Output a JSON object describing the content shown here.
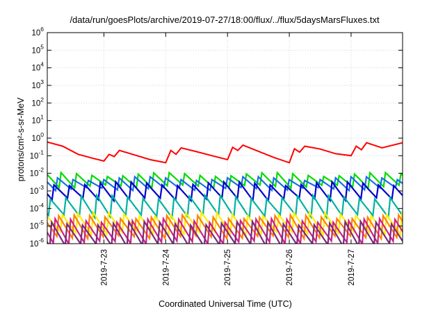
{
  "chart_data": {
    "type": "line",
    "title": "/data/run/goesPlots/archive/2019-07-27/18:00/flux/../flux/5daysMarsFluxes.txt",
    "xlabel": "Coordinated Universal Time (UTC)",
    "ylabel": "protons/cm²-s-sr-MeV",
    "y_scale": "log",
    "ylim": [
      1e-06,
      1000000.0
    ],
    "y_ticks": [
      {
        "base": "10",
        "exp": "-6"
      },
      {
        "base": "10",
        "exp": "-5"
      },
      {
        "base": "10",
        "exp": "-4"
      },
      {
        "base": "10",
        "exp": "-3"
      },
      {
        "base": "10",
        "exp": "-2"
      },
      {
        "base": "10",
        "exp": "-1"
      },
      {
        "base": "10",
        "exp": "0"
      },
      {
        "base": "10",
        "exp": "1"
      },
      {
        "base": "10",
        "exp": "2"
      },
      {
        "base": "10",
        "exp": "3"
      },
      {
        "base": "10",
        "exp": "4"
      },
      {
        "base": "10",
        "exp": "5"
      },
      {
        "base": "10",
        "exp": "6"
      }
    ],
    "xlim": [
      "2019-07-22 02:00",
      "2019-07-27 20:00"
    ],
    "x_ticks": [
      "2019-7-23",
      "2019-7-24",
      "2019-7-25",
      "2019-7-26",
      "2019-7-27"
    ],
    "grid": true,
    "legend": "none",
    "series": [
      {
        "color": "#ff0000",
        "x": [
          "2019-07-22 02:00",
          "2019-07-22 08:00",
          "2019-07-22 14:00",
          "2019-07-22 20:00",
          "2019-07-23 00:00",
          "2019-07-23 02:00",
          "2019-07-23 04:00",
          "2019-07-23 06:00",
          "2019-07-23 12:00",
          "2019-07-23 18:00",
          "2019-07-24 00:00",
          "2019-07-24 02:00",
          "2019-07-24 04:00",
          "2019-07-24 06:00",
          "2019-07-24 12:00",
          "2019-07-24 18:00",
          "2019-07-25 00:00",
          "2019-07-25 02:00",
          "2019-07-25 04:00",
          "2019-07-25 06:00",
          "2019-07-25 12:00",
          "2019-07-25 18:00",
          "2019-07-26 00:00",
          "2019-07-26 02:00",
          "2019-07-26 04:00",
          "2019-07-26 06:00",
          "2019-07-26 12:00",
          "2019-07-26 18:00",
          "2019-07-27 00:00",
          "2019-07-27 02:00",
          "2019-07-27 04:00",
          "2019-07-27 06:00",
          "2019-07-27 12:00",
          "2019-07-27 20:00"
        ],
        "y": [
          0.6,
          0.35,
          0.12,
          0.07,
          0.05,
          0.12,
          0.09,
          0.2,
          0.11,
          0.06,
          0.04,
          0.2,
          0.12,
          0.28,
          0.17,
          0.1,
          0.06,
          0.3,
          0.2,
          0.4,
          0.18,
          0.08,
          0.04,
          0.25,
          0.16,
          0.35,
          0.24,
          0.13,
          0.1,
          0.35,
          0.22,
          0.55,
          0.28,
          0.55
        ]
      },
      {
        "color": "#00dd00",
        "base": 0.004,
        "amp": 2.2
      },
      {
        "color": "#1a6ee6",
        "base": 0.0026,
        "amp": 2.0
      },
      {
        "color": "#0000cc",
        "base": 0.00095,
        "amp": 2.8
      },
      {
        "color": "#00b2a0",
        "base": 0.00013,
        "amp": 3.5
      },
      {
        "color": "#ffee00",
        "base": 1.4e-05,
        "amp": 3.5
      },
      {
        "color": "#ff8000",
        "base": 9e-06,
        "amp": 3.8
      },
      {
        "color": "#cc2288",
        "base": 5e-06,
        "amp": 4.2
      },
      {
        "color": "#7a2a7a",
        "base": 3.5e-06,
        "amp": 4.2
      }
    ]
  }
}
